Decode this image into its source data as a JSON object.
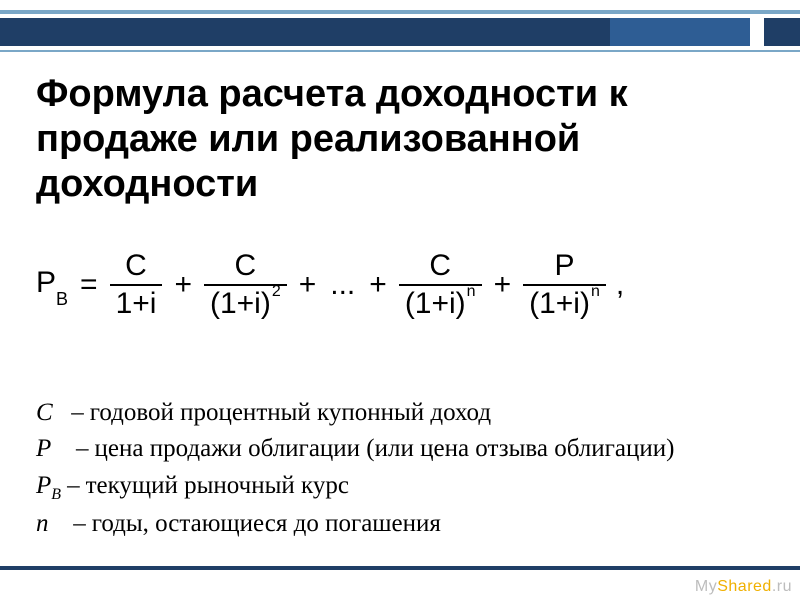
{
  "colors": {
    "bar_dark": "#1f3e66",
    "bar_mid": "#2e5d94",
    "bar_light": "#7aa7c7",
    "background": "#ffffff",
    "text": "#000000",
    "wm_gray": "#bdbdbd",
    "wm_yellow": "#f0b000"
  },
  "title": {
    "text": "Формула расчета доходности к продаже или реализованной доходности",
    "fontsize": 38,
    "weight": "bold"
  },
  "formula": {
    "lhs_sym": "P",
    "lhs_sub": "B",
    "eq": "=",
    "terms": [
      {
        "num": "C",
        "den_pre": "1+i",
        "den_exp": ""
      },
      {
        "num": "C",
        "den_pre": "(1+i)",
        "den_exp": "2"
      }
    ],
    "ellipsis": "...",
    "terms_tail": [
      {
        "num": "C",
        "den_pre": "(1+i)",
        "den_exp": "n"
      },
      {
        "num": "P",
        "den_pre": "(1+i)",
        "den_exp": "n"
      }
    ],
    "plus": "+",
    "trailing": ",",
    "fontsize": 30
  },
  "legend": {
    "fontsize": 25,
    "items": [
      {
        "sym": "C",
        "sub": "",
        "dash": "–",
        "desc": "годовой процентный купонный доход"
      },
      {
        "sym": "P",
        "sub": "",
        "dash": "–",
        "desc": "цена продажи облигации (или цена отзыва облигации)"
      },
      {
        "sym": "P",
        "sub": "B",
        "dash": "–",
        "desc": "текущий рыночный курс"
      },
      {
        "sym": "n",
        "sub": "",
        "dash": "–",
        "desc": "годы, остающиеся до погашения"
      }
    ]
  },
  "watermark": {
    "pre": "My",
    "mid": "Shared",
    "suf": ".ru"
  }
}
